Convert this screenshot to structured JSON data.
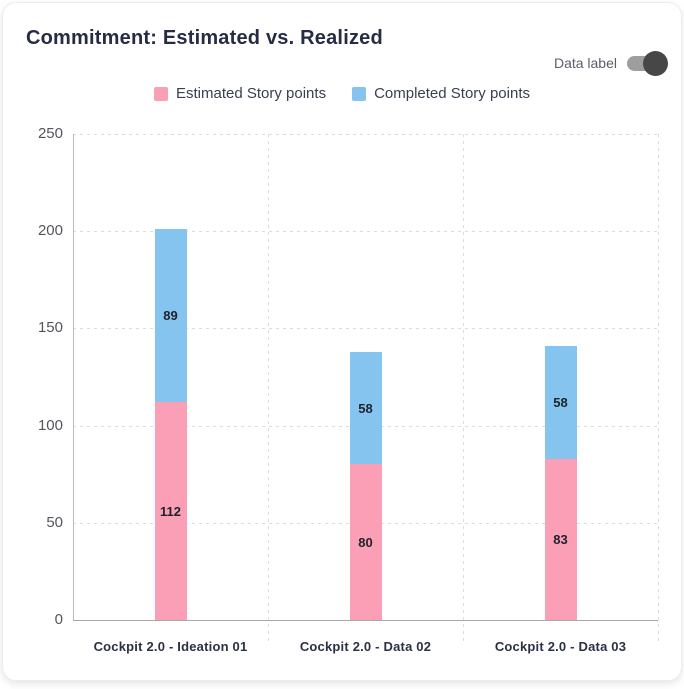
{
  "header": {
    "title": "Commitment: Estimated vs. Realized",
    "toggle_label": "Data label",
    "toggle_state": "on"
  },
  "legend": {
    "items": [
      {
        "label": "Estimated Story points",
        "color": "#FA9FB5"
      },
      {
        "label": "Completed Story points",
        "color": "#85C4EF"
      }
    ]
  },
  "chart_data": {
    "type": "bar",
    "stacked": true,
    "title": "Commitment: Estimated vs. Realized",
    "categories": [
      "Cockpit 2.0 - Ideation 01",
      "Cockpit 2.0 - Data 02",
      "Cockpit 2.0 - Data 03"
    ],
    "series": [
      {
        "name": "Estimated Story points",
        "color": "#FA9FB5",
        "values": [
          112,
          80,
          83
        ]
      },
      {
        "name": "Completed Story points",
        "color": "#85C4EF",
        "values": [
          89,
          58,
          58
        ]
      }
    ],
    "y_ticks": [
      0,
      50,
      100,
      150,
      200,
      250
    ],
    "ylim": [
      0,
      250
    ],
    "xlabel": "",
    "ylabel": "",
    "grid": "dotted",
    "data_labels": true,
    "legend_position": "top"
  },
  "colors": {
    "estimated": "#FA9FB5",
    "completed": "#85C4EF",
    "title_text": "#262C44",
    "axis_text": "#53565C",
    "category_text": "#2B3144",
    "value_label_text": "#1E222C",
    "gridline": "#DCDCDC",
    "axis_line": "#A8A8A8",
    "toggle_track": "#9E9E9E",
    "toggle_knob": "#474747",
    "card_background": "#FFFFFF",
    "card_border": "#EDEDED"
  }
}
